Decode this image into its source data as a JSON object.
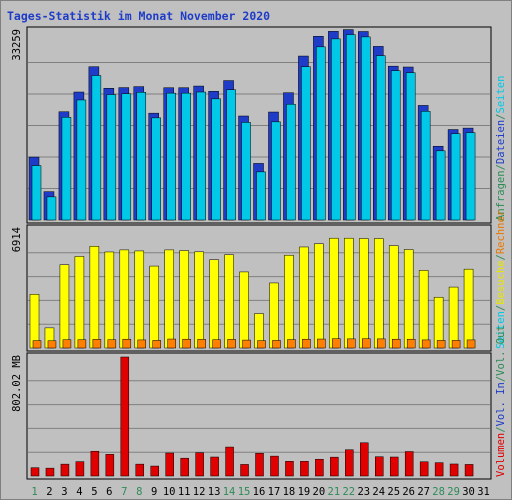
{
  "chart_data": {
    "type": "bar",
    "title": "Tages-Statistik im Monat November 2020",
    "x": [
      "1",
      "2",
      "3",
      "4",
      "5",
      "6",
      "7",
      "8",
      "9",
      "10",
      "11",
      "12",
      "13",
      "14",
      "15",
      "16",
      "17",
      "18",
      "19",
      "20",
      "21",
      "22",
      "23",
      "24",
      "25",
      "26",
      "27",
      "28",
      "29",
      "30",
      "31"
    ],
    "weekend_days": [
      "1",
      "7",
      "8",
      "14",
      "15",
      "21",
      "22",
      "28",
      "29"
    ],
    "panels": [
      {
        "id": "top",
        "max_label": "33259",
        "ymax": 33259,
        "side_labels": [
          {
            "text": "Anfragen",
            "color": "#2e8b57"
          },
          {
            "text": "/",
            "color": "#2e8b57"
          },
          {
            "text": "Dateien",
            "color": "#1e3cc8"
          },
          {
            "text": "/",
            "color": "#2e8b57"
          },
          {
            "text": "Seiten",
            "color": "#00c8e6"
          }
        ],
        "series": [
          {
            "name": "Anfragen",
            "color": "#1e3cc8",
            "values": [
              11075,
              4990,
              19050,
              22520,
              26970,
              23180,
              23300,
              23475,
              18800,
              23275,
              23280,
              23570,
              22650,
              24535,
              18300,
              9955,
              19000,
              22400,
              28850,
              32330,
              33200,
              33510,
              33170,
              30550,
              27070,
              26920,
              20160,
              12980,
              15920,
              16170
            ]
          },
          {
            "name": "Dateien",
            "color": "#00c8e6",
            "values": [
              10100,
              4600,
              18600,
              21650,
              25950,
              22600,
              22750,
              23000,
              18500,
              22850,
              22850,
              23050,
              21850,
              23450,
              17700,
              9000,
              17800,
              20900,
              27500,
              31000,
              32400,
              33150,
              32750,
              29450,
              26800,
              26450,
              19650,
              12700,
              15720,
              15900
            ]
          }
        ]
      },
      {
        "id": "middle",
        "max_label": "6914",
        "ymax": 6914,
        "side_labels": [
          {
            "text": "Seiten",
            "color": "#00c8e6"
          },
          {
            "text": "/",
            "color": "#2e8b57"
          },
          {
            "text": "Besuche",
            "color": "#e6e600"
          },
          {
            "text": "/",
            "color": "#2e8b57"
          },
          {
            "text": "Rechner",
            "color": "#e87800"
          }
        ],
        "series": [
          {
            "name": "Besuche",
            "color": "#ffff00",
            "values": [
              3120,
              1170,
              4840,
              5320,
              5910,
              5580,
              5700,
              5640,
              4760,
              5700,
              5660,
              5590,
              5130,
              5420,
              4420,
              2000,
              3780,
              5390,
              5870,
              6060,
              6380,
              6380,
              6360,
              6360,
              5950,
              5720,
              4510,
              2950,
              3540,
              4580
            ]
          },
          {
            "name": "Rechner",
            "color": "#ff8000",
            "values": [
              430,
              420,
              480,
              480,
              500,
              480,
              510,
              470,
              440,
              520,
              510,
              500,
              480,
              500,
              460,
              430,
              440,
              490,
              510,
              520,
              540,
              530,
              540,
              530,
              510,
              510,
              470,
              440,
              440,
              470
            ]
          }
        ]
      },
      {
        "id": "bottom",
        "max_label": "802.02 MB",
        "ymax": 802.02,
        "side_labels": [
          {
            "text": "Volumen",
            "color": "#e00000"
          },
          {
            "text": "/",
            "color": "#2e8b57"
          },
          {
            "text": "Vol. In",
            "color": "#1e3cc8"
          },
          {
            "text": "/",
            "color": "#2e8b57"
          },
          {
            "text": "Vol. Out",
            "color": "#2e8b57"
          }
        ],
        "series": [
          {
            "name": "Volumen",
            "color": "#e00000",
            "values": [
              56,
              53,
              80,
              97,
              167,
              146,
              802,
              80,
              67,
              155,
              120,
              157,
              128,
              195,
              78,
              153,
              134,
              99,
              99,
              113,
              127,
              177,
              224,
              130,
              128,
              165,
              96,
              90,
              81,
              78
            ]
          }
        ]
      }
    ]
  }
}
